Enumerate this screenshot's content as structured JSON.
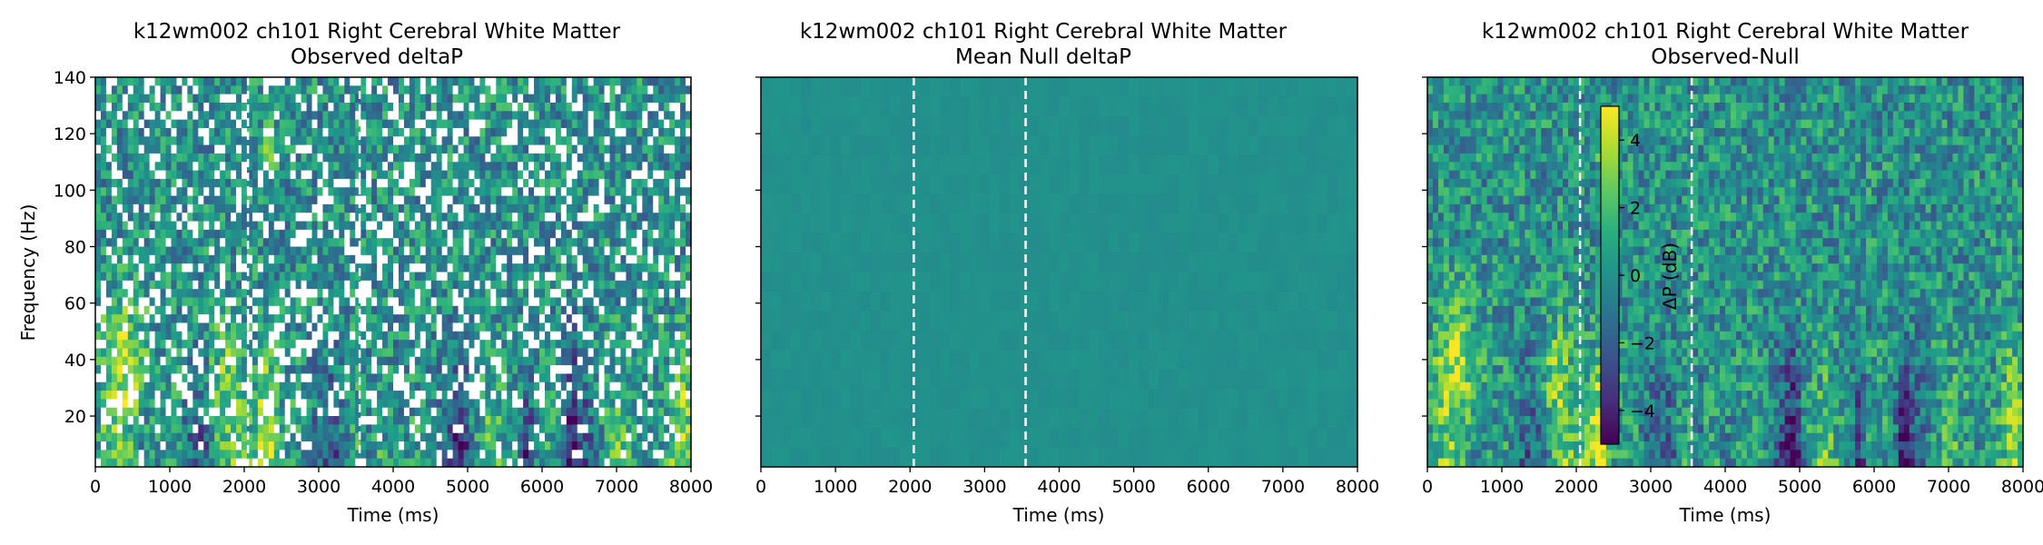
{
  "chart_data": [
    {
      "type": "heatmap",
      "title": "k12wm002 ch101 Right Cerebral White Matter",
      "subtitle": "Observed deltaP",
      "xlabel": "Time (ms)",
      "ylabel": "Frequency (Hz)",
      "xlim": [
        0,
        8000
      ],
      "ylim": [
        2,
        140
      ],
      "xticks": [
        "0",
        "1000",
        "2000",
        "3000",
        "4000",
        "5000",
        "6000",
        "7000",
        "8000"
      ],
      "yticks": [
        "20",
        "40",
        "60",
        "80",
        "100",
        "120",
        "140"
      ],
      "event_lines_ms": [
        2050,
        3550
      ],
      "colormap": "viridis",
      "masked_values": true,
      "notes_hot_spots": [
        [
          2300,
          10
        ],
        [
          2350,
          115
        ],
        [
          400,
          40
        ],
        [
          1700,
          35
        ]
      ]
    },
    {
      "type": "heatmap",
      "title": "k12wm002 ch101 Right Cerebral White Matter",
      "subtitle": "Mean Null deltaP",
      "xlabel": "Time (ms)",
      "ylabel": "",
      "xlim": [
        0,
        8000
      ],
      "ylim": [
        2,
        140
      ],
      "xticks": [
        "0",
        "1000",
        "2000",
        "3000",
        "4000",
        "5000",
        "6000",
        "7000",
        "8000"
      ],
      "yticks": [],
      "event_lines_ms": [
        2050,
        3550
      ],
      "colormap": "viridis",
      "uniform_value_db": 0
    },
    {
      "type": "heatmap",
      "title": "k12wm002 ch101 Right Cerebral White Matter",
      "subtitle": "Observed-Null",
      "xlabel": "Time (ms)",
      "ylabel": "",
      "xlim": [
        0,
        8000
      ],
      "ylim": [
        2,
        140
      ],
      "xticks": [
        "0",
        "1000",
        "2000",
        "3000",
        "4000",
        "5000",
        "6000",
        "7000",
        "8000"
      ],
      "yticks": [],
      "event_lines_ms": [
        2050,
        3550
      ],
      "colormap": "viridis",
      "colorbar": {
        "label": "ΔP (dB)",
        "range": [
          -5,
          5
        ],
        "ticks": [
          "−4",
          "−2",
          "0",
          "2",
          "4"
        ]
      }
    }
  ]
}
